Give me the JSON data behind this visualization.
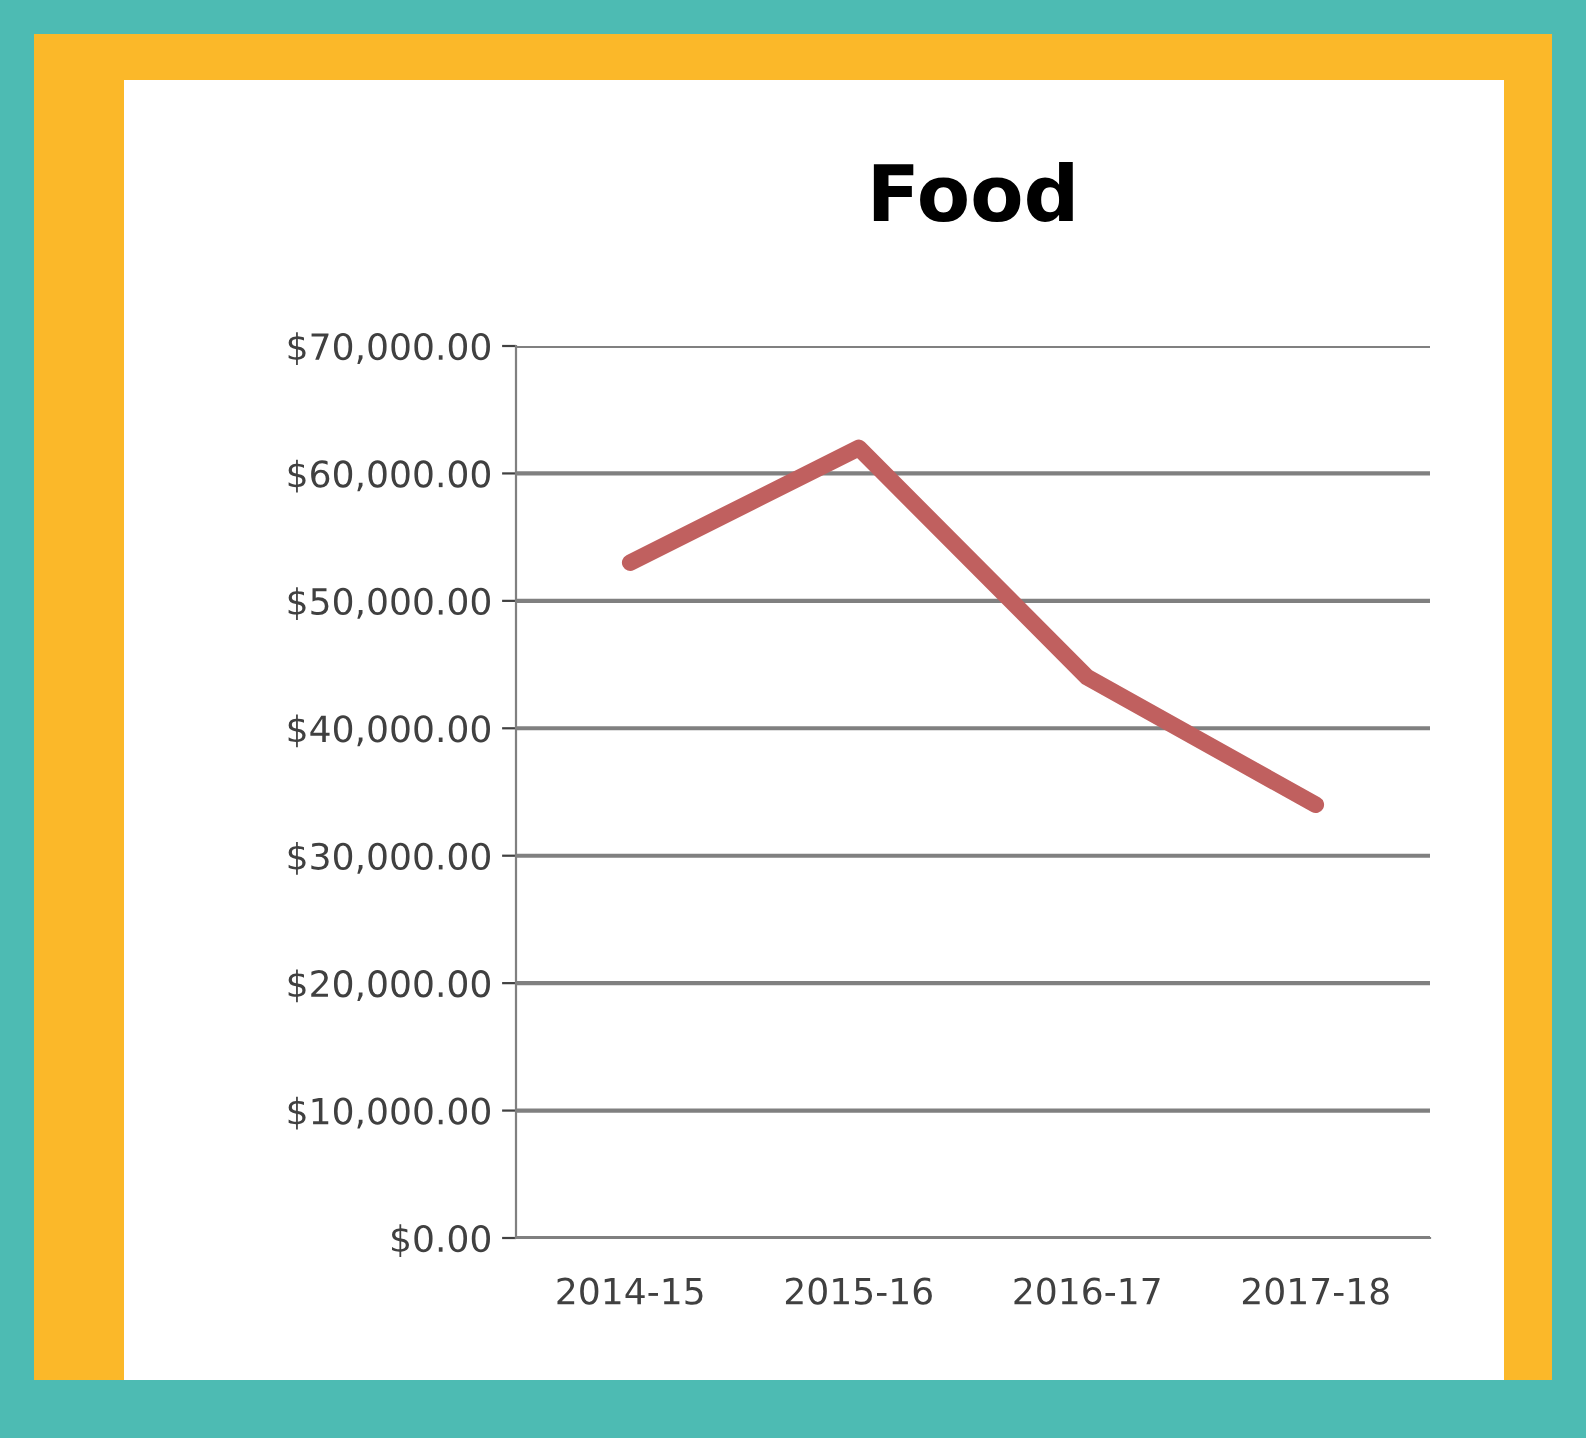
{
  "chart_data": {
    "type": "line",
    "title": "Food",
    "categories": [
      "2014-15",
      "2015-16",
      "2016-17",
      "2017-18"
    ],
    "series": [
      {
        "color": "#c0605f",
        "values": [
          53000,
          62000,
          44000,
          34000
        ]
      }
    ],
    "ylim": [
      0,
      70000
    ],
    "yticks": [
      {
        "value": 0,
        "label": "$0.00"
      },
      {
        "value": 10000,
        "label": "$10,000.00"
      },
      {
        "value": 20000,
        "label": "$20,000.00"
      },
      {
        "value": 30000,
        "label": "$30,000.00"
      },
      {
        "value": 40000,
        "label": "$40,000.00"
      },
      {
        "value": 50000,
        "label": "$50,000.00"
      },
      {
        "value": 60000,
        "label": "$60,000.00"
      },
      {
        "value": 70000,
        "label": "$70,000.00"
      }
    ],
    "grid": "y",
    "marker": "none",
    "line_style": "solid"
  }
}
